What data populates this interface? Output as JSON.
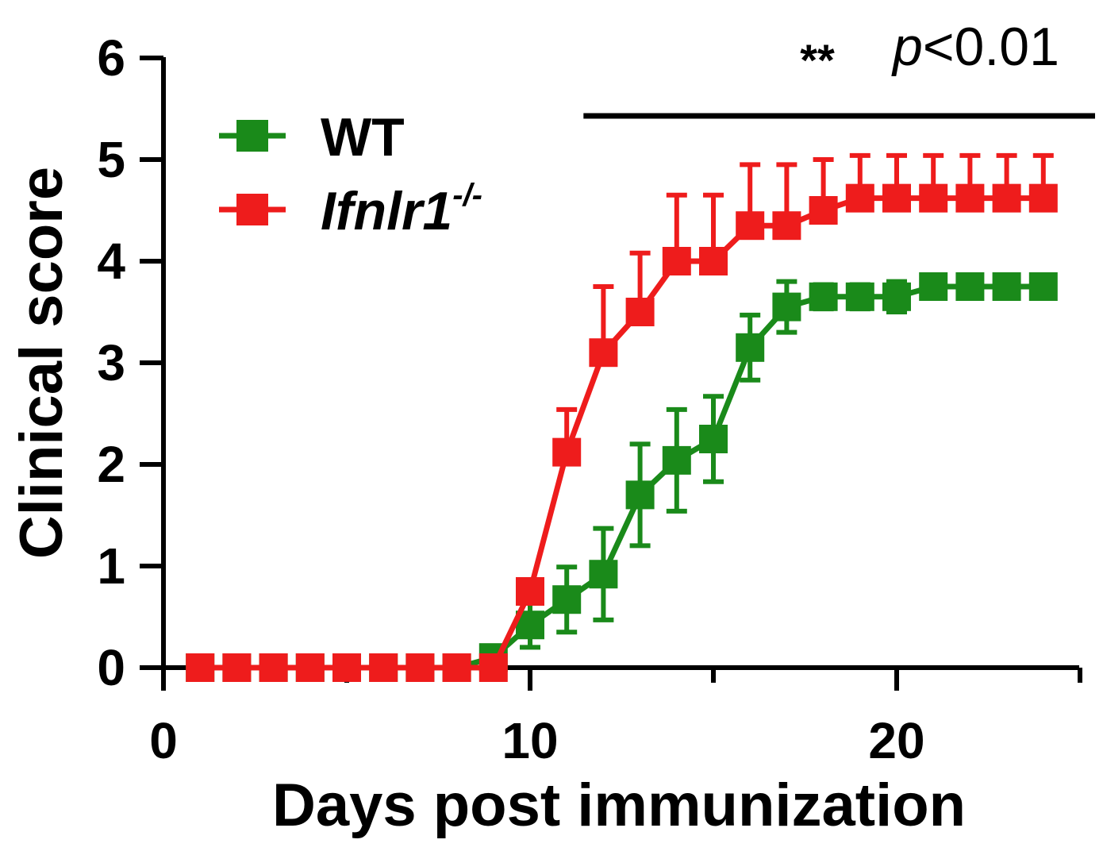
{
  "chart_data": {
    "type": "line",
    "title": "",
    "xlabel": "Days post immunization",
    "ylabel": "Clinical score",
    "xlim": [
      0,
      25
    ],
    "ylim": [
      0,
      6
    ],
    "x_ticks": [
      "0",
      "10",
      "20"
    ],
    "y_ticks": [
      "0",
      "1",
      "2",
      "3",
      "4",
      "5",
      "6"
    ],
    "x_tick_values": [
      0,
      10,
      20
    ],
    "y_tick_values": [
      0,
      1,
      2,
      3,
      4,
      5,
      6
    ],
    "x_minor_ticks": [
      5,
      15,
      25
    ],
    "series": [
      {
        "name": "WT",
        "legend_label": "WT",
        "color": "#1a8a1a",
        "x": [
          1,
          2,
          3,
          4,
          5,
          6,
          7,
          8,
          9,
          10,
          11,
          12,
          13,
          14,
          15,
          16,
          17,
          18,
          19,
          20,
          21,
          22,
          23,
          24
        ],
        "y": [
          0,
          0,
          0,
          0,
          0,
          0,
          0,
          0,
          0.1,
          0.42,
          0.67,
          0.92,
          1.7,
          2.04,
          2.25,
          3.15,
          3.55,
          3.65,
          3.65,
          3.65,
          3.75,
          3.75,
          3.75,
          3.75
        ],
        "err": [
          0,
          0,
          0,
          0,
          0,
          0,
          0,
          0,
          0,
          0.22,
          0.32,
          0.45,
          0.5,
          0.5,
          0.42,
          0.32,
          0.25,
          0.12,
          0.12,
          0.15,
          0,
          0,
          0,
          0
        ]
      },
      {
        "name": "Ifnlr1-/-",
        "legend_label": "Ifnlr1",
        "legend_superscript": "-/-",
        "color": "#ee1c1c",
        "x": [
          1,
          2,
          3,
          4,
          5,
          6,
          7,
          8,
          9,
          10,
          11,
          12,
          13,
          14,
          15,
          16,
          17,
          18,
          19,
          20,
          21,
          22,
          23,
          24
        ],
        "y": [
          0,
          0,
          0,
          0,
          0,
          0,
          0,
          0,
          0,
          0.75,
          2.12,
          3.1,
          3.5,
          4.0,
          4.0,
          4.35,
          4.35,
          4.5,
          4.62,
          4.62,
          4.62,
          4.62,
          4.62,
          4.62
        ],
        "err": [
          0,
          0,
          0,
          0,
          0,
          0,
          0,
          0,
          0,
          0,
          0.42,
          0.65,
          0.58,
          0.65,
          0.65,
          0.6,
          0.6,
          0.5,
          0.42,
          0.42,
          0.42,
          0.42,
          0.42,
          0.42
        ]
      }
    ],
    "significance": {
      "stars": "**",
      "p_prefix": "p",
      "p_value": "<0.01",
      "bar_from_day": 11.5,
      "bar_to_day": 25
    },
    "legend_position": "top-left"
  }
}
